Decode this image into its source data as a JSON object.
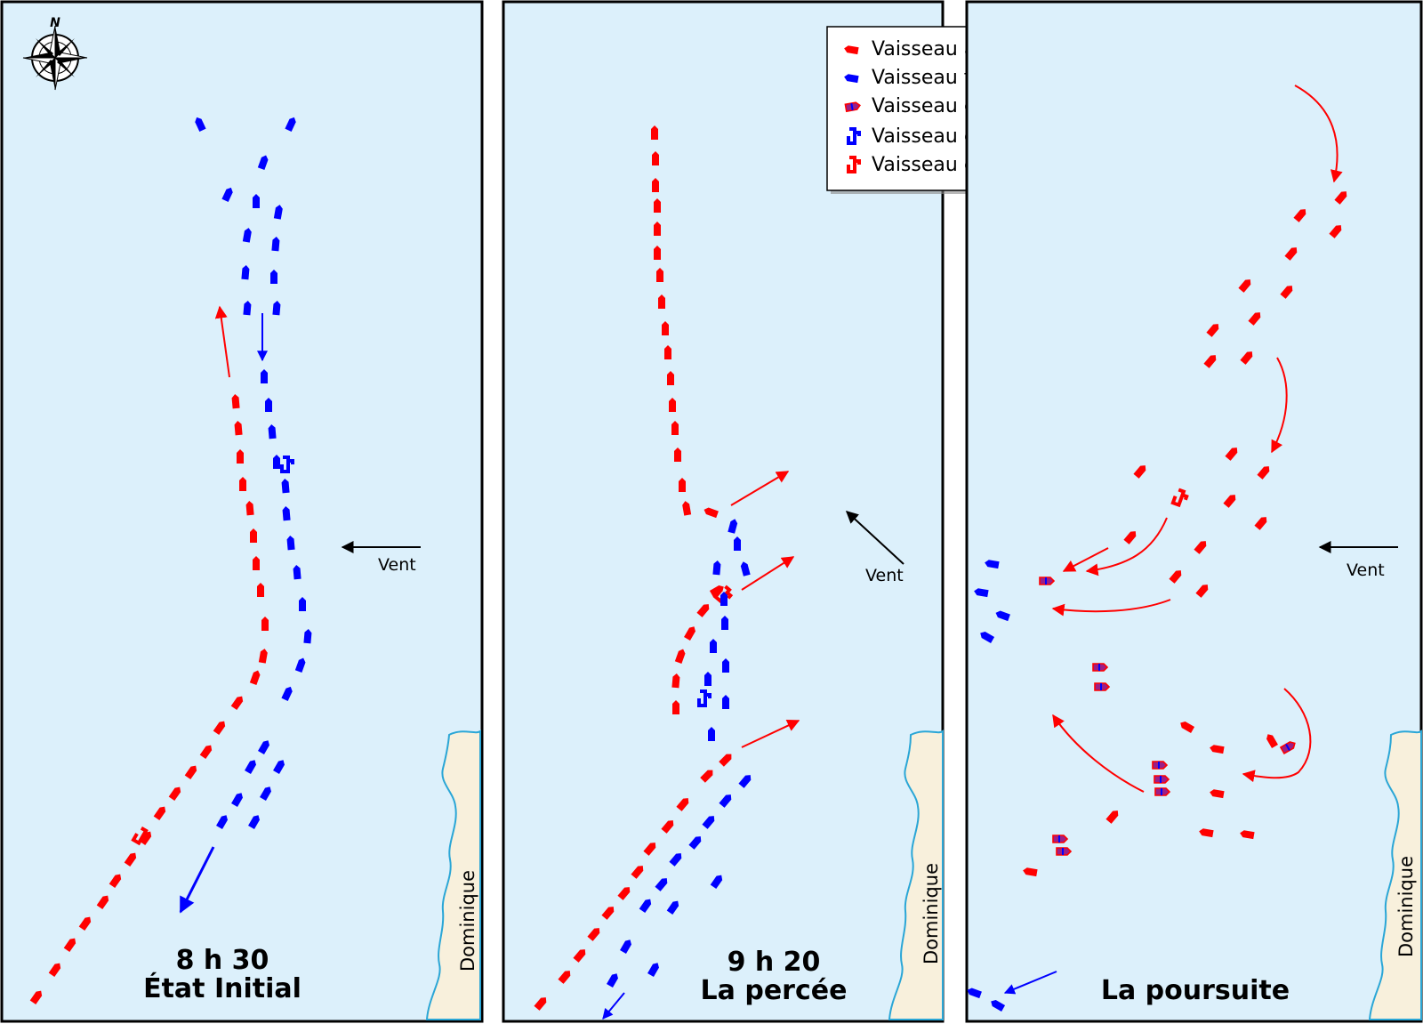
{
  "panels": [
    {
      "time": "8 h 30",
      "phase": "État Initial",
      "wind": "Vent",
      "island": "Dominique"
    },
    {
      "time": "9 h 20",
      "phase": "La percée",
      "wind": "Vent",
      "island": "Dominique"
    },
    {
      "time": "",
      "phase": "La poursuite",
      "wind": "Vent",
      "island": "Dominique"
    }
  ],
  "compass": {
    "north": "N",
    "icon": "compass-rose-icon"
  },
  "legend": {
    "items": [
      {
        "label": "Vaisseau anglais",
        "icon": "english-ship-icon"
      },
      {
        "label": "Vaisseau français",
        "icon": "french-ship-icon"
      },
      {
        "label": "Vaisseau capturé",
        "icon": "captured-ship-icon"
      },
      {
        "label": "Vaisseau de De Grasse",
        "icon": "de-grasse-flagship-icon"
      },
      {
        "label": "Vaisseau de Rodney",
        "icon": "rodney-flagship-icon"
      }
    ]
  },
  "colors": {
    "sea": "#dcf0fb",
    "land": "#f8f0dc",
    "coast": "#2aa6d6",
    "english": "#ff0000",
    "french": "#0000ff",
    "captured_fill": "#9b1f86",
    "wind_arrow": "#000000"
  }
}
